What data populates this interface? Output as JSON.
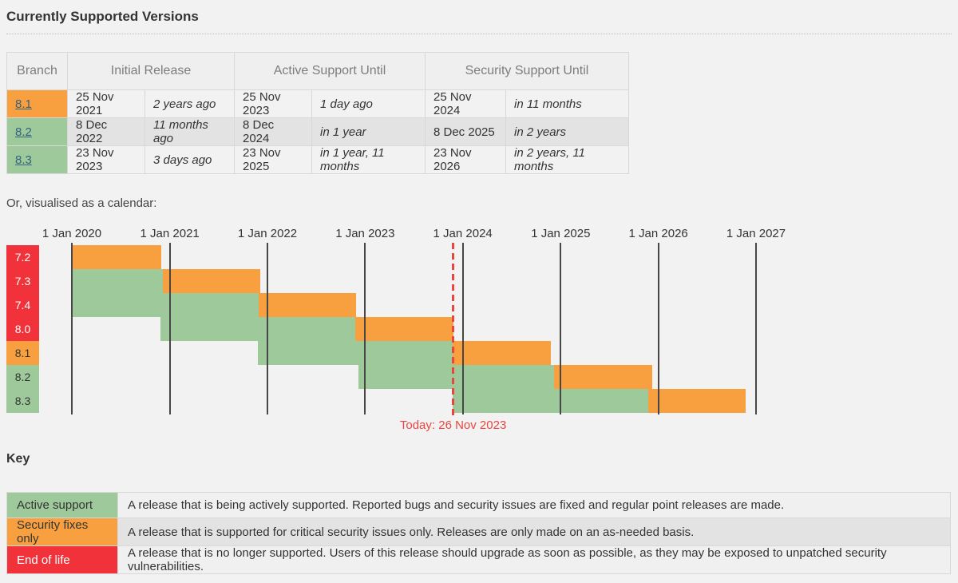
{
  "title": "Currently Supported Versions",
  "table": {
    "headers": {
      "branch": "Branch",
      "initial": "Initial Release",
      "active": "Active Support Until",
      "security": "Security Support Until"
    },
    "rows": [
      {
        "branch": "8.1",
        "state": "security",
        "initial_date": "25 Nov 2021",
        "initial_rel": "2 years ago",
        "active_date": "25 Nov 2023",
        "active_rel": "1 day ago",
        "security_date": "25 Nov 2024",
        "security_rel": "in 11 months"
      },
      {
        "branch": "8.2",
        "state": "active",
        "initial_date": "8 Dec 2022",
        "initial_rel": "11 months ago",
        "active_date": "8 Dec 2024",
        "active_rel": "in 1 year",
        "security_date": "8 Dec 2025",
        "security_rel": "in 2 years"
      },
      {
        "branch": "8.3",
        "state": "active",
        "initial_date": "23 Nov 2023",
        "initial_rel": "3 days ago",
        "active_date": "23 Nov 2025",
        "active_rel": "in 1 year, 11 months",
        "security_date": "23 Nov 2026",
        "security_rel": "in 2 years, 11 months"
      }
    ]
  },
  "calendar_intro": "Or, visualised as a calendar:",
  "chart_data": {
    "type": "gantt",
    "title": "PHP branch support calendar",
    "x_axis": {
      "start": "2020-01-01",
      "end": "2027-01-01",
      "ticks": [
        {
          "label": "1 Jan 2020",
          "date": "2020-01-01"
        },
        {
          "label": "1 Jan 2021",
          "date": "2021-01-01"
        },
        {
          "label": "1 Jan 2022",
          "date": "2022-01-01"
        },
        {
          "label": "1 Jan 2023",
          "date": "2023-01-01"
        },
        {
          "label": "1 Jan 2024",
          "date": "2024-01-01"
        },
        {
          "label": "1 Jan 2025",
          "date": "2025-01-01"
        },
        {
          "label": "1 Jan 2026",
          "date": "2026-01-01"
        },
        {
          "label": "1 Jan 2027",
          "date": "2027-01-01"
        }
      ]
    },
    "branches": [
      {
        "name": "7.2",
        "label_state": "eol",
        "release": "2017-11-30",
        "active_until": "2019-11-30",
        "security_until": "2020-11-30"
      },
      {
        "name": "7.3",
        "label_state": "eol",
        "release": "2018-12-06",
        "active_until": "2020-12-06",
        "security_until": "2021-12-06"
      },
      {
        "name": "7.4",
        "label_state": "eol",
        "release": "2019-11-28",
        "active_until": "2021-11-28",
        "security_until": "2022-11-28"
      },
      {
        "name": "8.0",
        "label_state": "eol",
        "release": "2020-11-26",
        "active_until": "2022-11-26",
        "security_until": "2023-11-26"
      },
      {
        "name": "8.1",
        "label_state": "security",
        "release": "2021-11-25",
        "active_until": "2023-11-25",
        "security_until": "2024-11-25"
      },
      {
        "name": "8.2",
        "label_state": "active",
        "release": "2022-12-08",
        "active_until": "2024-12-08",
        "security_until": "2025-12-08"
      },
      {
        "name": "8.3",
        "label_state": "active",
        "release": "2023-11-23",
        "active_until": "2025-11-23",
        "security_until": "2026-11-23"
      }
    ],
    "today": {
      "date": "2023-11-26",
      "label": "Today: 26 Nov 2023"
    },
    "legend_position": "below",
    "grid": true
  },
  "key": {
    "title": "Key",
    "rows": [
      {
        "label": "Active support",
        "state": "active",
        "description": "A release that is being actively supported. Reported bugs and security issues are fixed and regular point releases are made."
      },
      {
        "label": "Security fixes only",
        "state": "security",
        "description": "A release that is supported for critical security issues only. Releases are only made on an as-needed basis."
      },
      {
        "label": "End of life",
        "state": "eol",
        "description": "A release that is no longer supported. Users of this release should upgrade as soon as possible, as they may be exposed to unpatched security vulnerabilities."
      }
    ]
  },
  "colors": {
    "active": "#9ec99b",
    "security": "#f8a03f",
    "eol": "#f2323a",
    "today": "#e8463f",
    "link": "#35617e"
  }
}
